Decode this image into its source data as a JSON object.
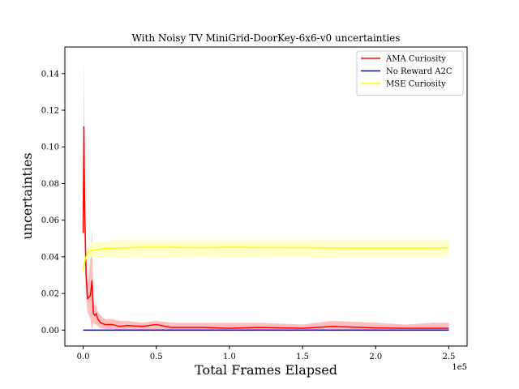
{
  "chart_data": {
    "type": "line",
    "title": "With Noisy TV MiniGrid-DoorKey-6x6-v0 uncertainties",
    "xlabel": "Total Frames Elapsed",
    "ylabel": "uncertainties",
    "x_offset_text": "1e5",
    "xlim": [
      -12500,
      262500
    ],
    "ylim": [
      -0.0087,
      0.1545
    ],
    "x_ticks": [
      0,
      50000,
      100000,
      150000,
      200000,
      250000
    ],
    "x_tick_labels": [
      "0.0",
      "0.5",
      "1.0",
      "1.5",
      "2.0",
      "2.5"
    ],
    "y_ticks": [
      0.0,
      0.02,
      0.04,
      0.06,
      0.08,
      0.1,
      0.12,
      0.14
    ],
    "y_tick_labels": [
      "0.00",
      "0.02",
      "0.04",
      "0.06",
      "0.08",
      "0.10",
      "0.12",
      "0.14"
    ],
    "grid": false,
    "legend_position": "top-right",
    "series": [
      {
        "name": "AMA Curiosity",
        "color": "#ff0000",
        "band_color": "#ffb3b3",
        "x": [
          0,
          500,
          1000,
          2000,
          3000,
          4000,
          5000,
          6000,
          7000,
          8000,
          9000,
          10000,
          12000,
          15000,
          20000,
          25000,
          30000,
          40000,
          50000,
          60000,
          80000,
          100000,
          120000,
          150000,
          170000,
          200000,
          220000,
          240000,
          250000
        ],
        "values": [
          0.053,
          0.111,
          0.068,
          0.03,
          0.017,
          0.018,
          0.019,
          0.027,
          0.009,
          0.008,
          0.009,
          0.006,
          0.004,
          0.003,
          0.003,
          0.002,
          0.0025,
          0.002,
          0.003,
          0.0015,
          0.0015,
          0.001,
          0.0015,
          0.001,
          0.002,
          0.0012,
          0.001,
          0.001,
          0.001
        ],
        "lower": [
          0.04,
          0.08,
          0.048,
          0.018,
          0.01,
          0.008,
          0.006,
          0.0,
          0.004,
          0.003,
          0.003,
          0.002,
          0.001,
          0.0005,
          0.0005,
          0.0,
          0.0,
          0.0,
          0.0,
          0.0,
          0.0,
          0.0,
          0.0,
          0.0,
          0.0,
          0.0,
          0.0,
          0.0,
          0.0
        ],
        "upper": [
          0.066,
          0.148,
          0.09,
          0.042,
          0.025,
          0.03,
          0.04,
          0.056,
          0.016,
          0.013,
          0.014,
          0.01,
          0.008,
          0.006,
          0.006,
          0.005,
          0.005,
          0.004,
          0.005,
          0.004,
          0.004,
          0.004,
          0.004,
          0.003,
          0.005,
          0.004,
          0.003,
          0.004,
          0.004
        ]
      },
      {
        "name": "No Reward A2C",
        "color": "#0000ff",
        "x": [
          0,
          250000
        ],
        "values": [
          0.0,
          0.0
        ]
      },
      {
        "name": "MSE Curiosity",
        "color": "#ffff00",
        "band_color": "#ffffc0",
        "x": [
          0,
          1000,
          2000,
          4000,
          6000,
          10000,
          15000,
          20000,
          30000,
          40000,
          60000,
          80000,
          100000,
          150000,
          200000,
          230000,
          250000
        ],
        "values": [
          0.033,
          0.037,
          0.04,
          0.043,
          0.0435,
          0.044,
          0.0445,
          0.0448,
          0.045,
          0.0452,
          0.0452,
          0.045,
          0.0452,
          0.045,
          0.0448,
          0.0448,
          0.045
        ],
        "lower": [
          0.03,
          0.034,
          0.037,
          0.039,
          0.04,
          0.04,
          0.04,
          0.04,
          0.04,
          0.04,
          0.04,
          0.04,
          0.04,
          0.04,
          0.04,
          0.04,
          0.04
        ],
        "upper": [
          0.036,
          0.04,
          0.043,
          0.047,
          0.048,
          0.048,
          0.048,
          0.049,
          0.049,
          0.049,
          0.049,
          0.049,
          0.049,
          0.049,
          0.049,
          0.049,
          0.049
        ]
      }
    ]
  }
}
